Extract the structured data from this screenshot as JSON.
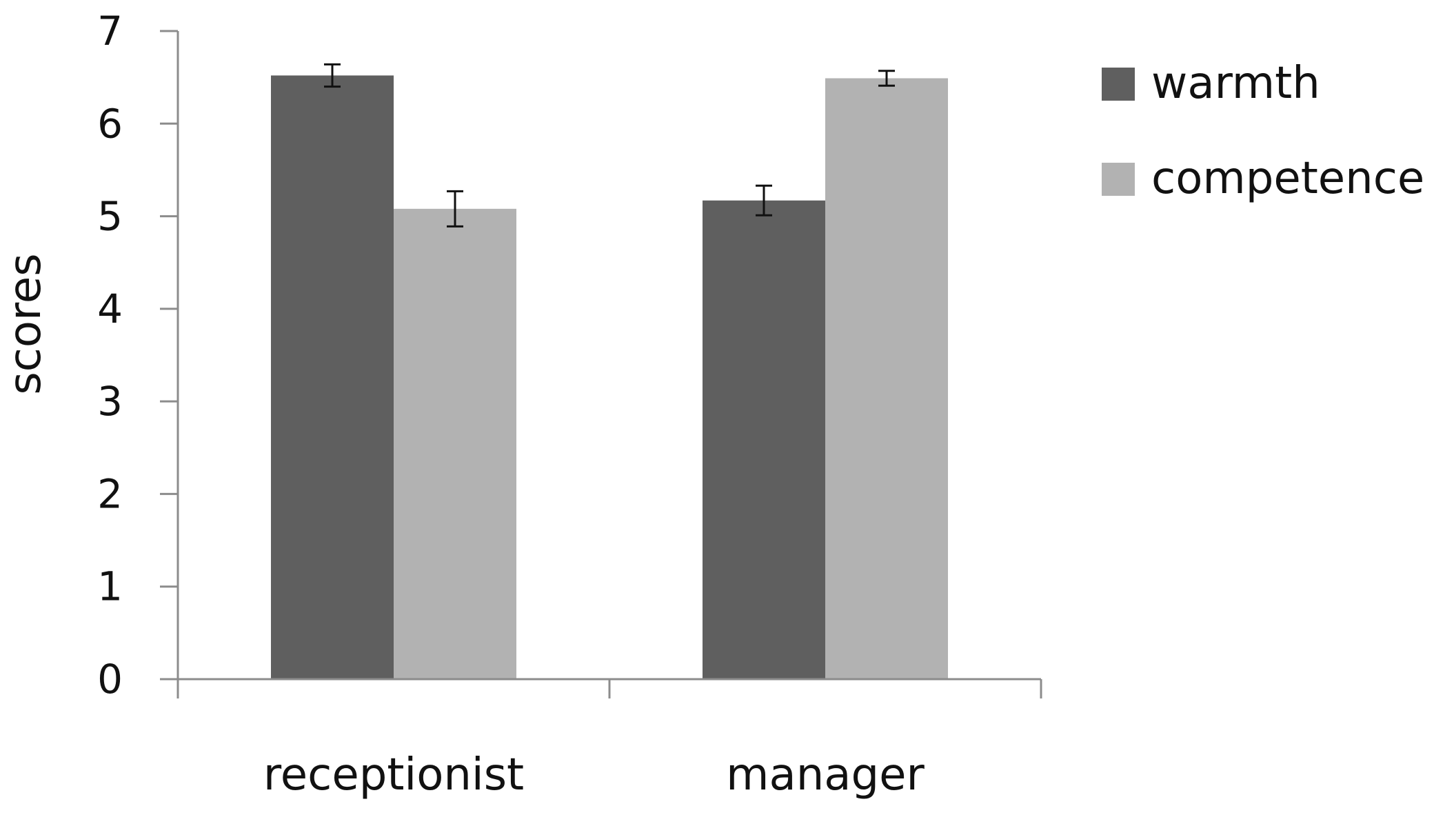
{
  "chart_data": {
    "type": "bar",
    "title": "",
    "xlabel": "",
    "ylabel": "scores",
    "ylim": [
      0,
      7
    ],
    "yticks": [
      "0",
      "1",
      "2",
      "3",
      "4",
      "5",
      "6",
      "7"
    ],
    "grid": false,
    "legend_position": "top-right",
    "categories": [
      "receptionist",
      "manager"
    ],
    "series": [
      {
        "name": "warmth",
        "color": "#5f5f5f",
        "values": [
          6.52,
          5.17
        ],
        "error": [
          0.12,
          0.16
        ]
      },
      {
        "name": "competence",
        "color": "#b2b2b2",
        "values": [
          5.08,
          6.49
        ],
        "error": [
          0.19,
          0.08
        ]
      }
    ]
  }
}
